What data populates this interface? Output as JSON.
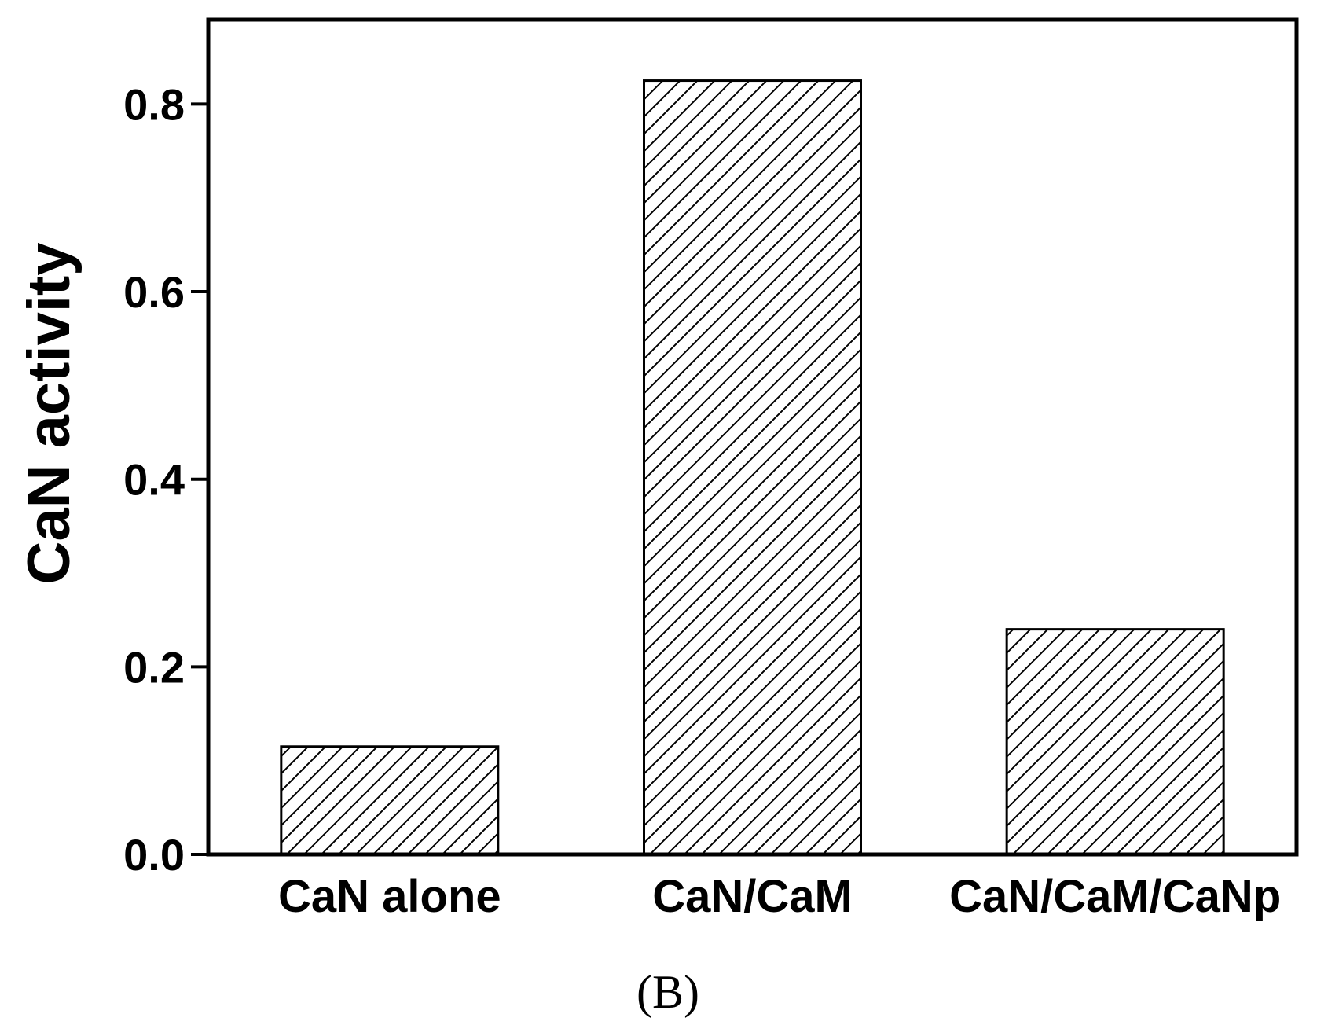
{
  "chart_data": {
    "type": "bar",
    "categories": [
      "CaN alone",
      "CaN/CaM",
      "CaN/CaM/CaNp"
    ],
    "values": [
      0.115,
      0.825,
      0.24
    ],
    "xlabel": "",
    "ylabel": "CaN activity",
    "ylim": [
      0,
      0.89
    ],
    "yticks": [
      "0.0",
      "0.2",
      "0.4",
      "0.6",
      "0.8"
    ],
    "grid": false,
    "legend": "none",
    "bar_fill": "hatched diagonal",
    "bar_color": "#000000",
    "caption": "(B)"
  }
}
